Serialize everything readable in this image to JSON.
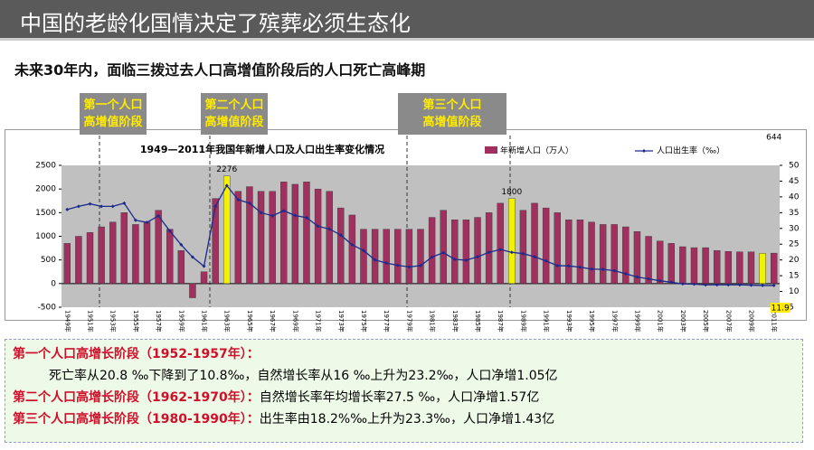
{
  "header": {
    "title": "中国的老龄化国情决定了殡葬必须生态化",
    "subtitle": "未来30年内，面临三拨过去人口高增值阶段后的人口死亡高峰期"
  },
  "callouts": [
    [
      "第一个人口",
      "高增值阶段"
    ],
    [
      "第二个人口",
      "高增值阶段"
    ],
    [
      "第三个人口",
      "高增值阶段"
    ]
  ],
  "chart_data": {
    "type": "bar_line",
    "title": "1949—2011年我国年新增人口及人口出生率变化情况",
    "categories": [
      "1949年",
      null,
      "1951年",
      null,
      "1953年",
      null,
      "1955年",
      null,
      "1957年",
      null,
      "1959年",
      null,
      "1961年",
      null,
      "1963年",
      null,
      "1965年",
      null,
      "1967年",
      null,
      "1969年",
      null,
      "1971年",
      null,
      "1973年",
      null,
      "1975年",
      null,
      "1977年",
      null,
      "1979年",
      null,
      "1981年",
      null,
      "1983年",
      null,
      "1985年",
      null,
      "1987年",
      null,
      "1989年",
      null,
      "1991年",
      null,
      "1993年",
      null,
      "1995年",
      null,
      "1997年",
      null,
      "1999年",
      null,
      "2001年",
      null,
      "2003年",
      null,
      "2005年",
      null,
      "2007年",
      null,
      "2009年",
      null,
      "2011年"
    ],
    "series": [
      {
        "name": "年新增人口（万人）",
        "color": "#a0305e",
        "highlight_color": "#f2f200",
        "highlight_indices": [
          14,
          39,
          61
        ],
        "label_indices": [
          14,
          39,
          62
        ],
        "values": [
          850,
          1000,
          1080,
          1200,
          1300,
          1500,
          1250,
          1300,
          1550,
          1150,
          700,
          -300,
          250,
          1800,
          2276,
          1950,
          2050,
          1950,
          1950,
          2150,
          2100,
          2150,
          2000,
          1950,
          1600,
          1450,
          1150,
          1150,
          1150,
          1150,
          1150,
          1150,
          1400,
          1550,
          1350,
          1350,
          1400,
          1500,
          1700,
          1800,
          1550,
          1700,
          1600,
          1500,
          1350,
          1350,
          1300,
          1250,
          1250,
          1200,
          1100,
          1000,
          900,
          850,
          780,
          760,
          760,
          700,
          680,
          670,
          670,
          640,
          644
        ]
      },
      {
        "name": "人口出生率（‰）",
        "color": "#1c2a8c",
        "axis": "y2",
        "label_indices": [
          62
        ],
        "values": [
          36,
          37,
          37.8,
          37,
          37,
          38,
          32.6,
          31.9,
          34,
          29.2,
          24.8,
          20.9,
          18,
          37,
          43.6,
          39.1,
          38,
          35,
          34,
          35.6,
          34.1,
          33.4,
          30.7,
          29.8,
          27.9,
          24.8,
          23,
          20,
          19,
          18.3,
          17.8,
          18.2,
          20.9,
          22.3,
          20.2,
          19.9,
          21,
          22.4,
          23.3,
          22.4,
          22,
          21,
          19.7,
          18.2,
          18.1,
          17.7,
          17.1,
          17,
          16.6,
          15.6,
          14.6,
          14,
          13.4,
          12.9,
          12.4,
          12.3,
          12.1,
          12.1,
          12.1,
          12.1,
          12,
          11.9,
          11.9
        ]
      }
    ],
    "ylim": [
      -500,
      2500
    ],
    "yticks": [
      -500,
      0,
      500,
      1000,
      1500,
      2000,
      2500
    ],
    "y2lim": [
      5,
      50
    ],
    "y2ticks": [
      5,
      10,
      15,
      20,
      25,
      30,
      35,
      40,
      45,
      50
    ],
    "plot_bg": "#c0c0c0"
  },
  "notes": [
    {
      "head": "第一个人口高增长阶段（1952-1957年）：",
      "body": "死亡率从20.8 ‰下降到了10.8‰，自然增长率从16 ‰上升为23.2‰，人口净增1.05亿"
    },
    {
      "head": "第二个人口高增长阶段（1962-1970年）：",
      "body": "自然增长率年均增长率27.5 ‰，人口净增1.57亿"
    },
    {
      "head": "第三个人口高增长阶段（1980-1990年）：",
      "body": "出生率由18.2%‰上升为23.3‰，人口净增1.43亿"
    }
  ]
}
